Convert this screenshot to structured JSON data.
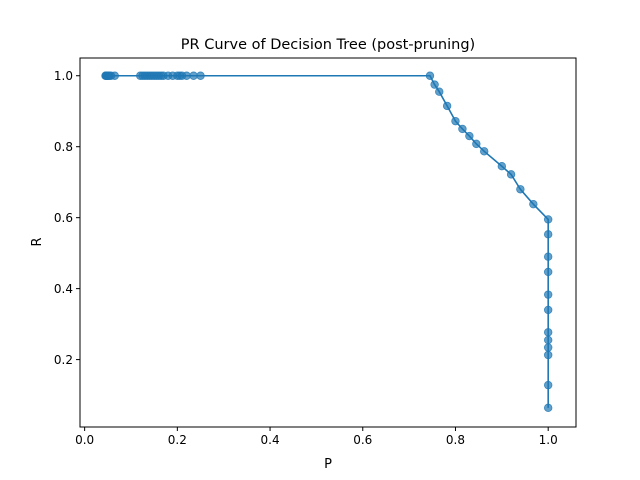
{
  "chart_data": {
    "type": "line",
    "title": "PR Curve of Decision Tree (post-pruning)",
    "xlabel": "P",
    "ylabel": "R",
    "xlim": [
      -0.01,
      1.06
    ],
    "ylim": [
      0.01,
      1.05
    ],
    "xticks": [
      0.0,
      0.2,
      0.4,
      0.6,
      0.8,
      1.0
    ],
    "xtick_labels": [
      "0.0",
      "0.2",
      "0.4",
      "0.6",
      "0.8",
      "1.0"
    ],
    "yticks": [
      0.2,
      0.4,
      0.6,
      0.8,
      1.0
    ],
    "ytick_labels": [
      "0.2",
      "0.4",
      "0.6",
      "0.8",
      "1.0"
    ],
    "grid": false,
    "series": [
      {
        "color": "#1f77b4",
        "markers": true,
        "points": [
          [
            0.045,
            1.0
          ],
          [
            0.046,
            1.0
          ],
          [
            0.047,
            1.0
          ],
          [
            0.048,
            1.0
          ],
          [
            0.049,
            1.0
          ],
          [
            0.05,
            1.0
          ],
          [
            0.052,
            1.0
          ],
          [
            0.054,
            1.0
          ],
          [
            0.057,
            1.0
          ],
          [
            0.065,
            1.0
          ],
          [
            0.12,
            1.0
          ],
          [
            0.125,
            1.0
          ],
          [
            0.13,
            1.0
          ],
          [
            0.135,
            1.0
          ],
          [
            0.14,
            1.0
          ],
          [
            0.145,
            1.0
          ],
          [
            0.15,
            1.0
          ],
          [
            0.155,
            1.0
          ],
          [
            0.16,
            1.0
          ],
          [
            0.165,
            1.0
          ],
          [
            0.17,
            1.0
          ],
          [
            0.18,
            1.0
          ],
          [
            0.19,
            1.0
          ],
          [
            0.2,
            1.0
          ],
          [
            0.205,
            1.0
          ],
          [
            0.21,
            1.0
          ],
          [
            0.22,
            1.0
          ],
          [
            0.235,
            1.0
          ],
          [
            0.25,
            1.0
          ],
          [
            0.745,
            1.0
          ],
          [
            0.755,
            0.975
          ],
          [
            0.765,
            0.955
          ],
          [
            0.782,
            0.915
          ],
          [
            0.8,
            0.872
          ],
          [
            0.815,
            0.85
          ],
          [
            0.83,
            0.83
          ],
          [
            0.845,
            0.808
          ],
          [
            0.862,
            0.787
          ],
          [
            0.9,
            0.745
          ],
          [
            0.92,
            0.722
          ],
          [
            0.94,
            0.68
          ],
          [
            0.968,
            0.638
          ],
          [
            1.0,
            0.595
          ],
          [
            1.0,
            0.553
          ],
          [
            1.0,
            0.49
          ],
          [
            1.0,
            0.447
          ],
          [
            1.0,
            0.383
          ],
          [
            1.0,
            0.34
          ],
          [
            1.0,
            0.277
          ],
          [
            1.0,
            0.255
          ],
          [
            1.0,
            0.234
          ],
          [
            1.0,
            0.213
          ],
          [
            1.0,
            0.128
          ],
          [
            1.0,
            0.064
          ]
        ]
      }
    ]
  }
}
